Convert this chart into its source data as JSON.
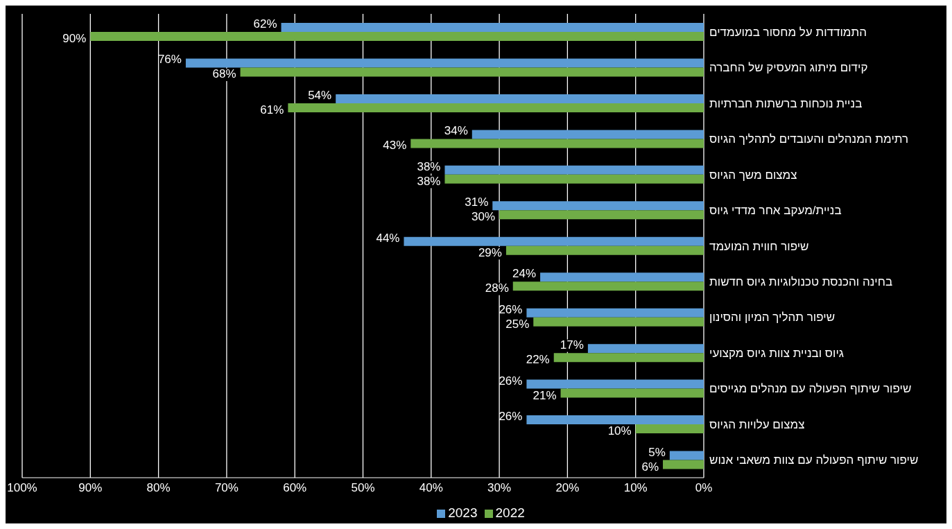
{
  "chart_data": {
    "type": "bar",
    "orientation": "horizontal",
    "categories": [
      "התמודדות על מחסור במועמדים",
      "קידום מיתוג המעסיק של החברה",
      "בניית נוכחות ברשתות חברתיות",
      "רתימת המנהלים והעובדים לתהליך הגיוס",
      "צמצום משך הגיוס",
      "בניית/מעקב אחר מדדי גיוס",
      "שיפור חווית המועמד",
      "בחינה והכנסת טכנולוגיות גיוס חדשות",
      "שיפור תהליך המיון והסינון",
      "גיוס ובניית צוות גיוס מקצועי",
      "שיפור שיתוף הפעולה עם מנהלים מגייסים",
      "צמצום עלויות הגיוס",
      "שיפור שיתוף הפעולה עם צוות משאבי אנוש"
    ],
    "series": [
      {
        "name": "2023",
        "color": "#5b9bd5",
        "values": [
          62,
          76,
          54,
          34,
          38,
          31,
          44,
          24,
          26,
          17,
          26,
          26,
          5
        ],
        "value_labels": [
          "62%",
          "76%",
          "54%",
          "34%",
          "38%",
          "31%",
          "44%",
          "24%",
          "26%",
          "17%",
          "26%",
          "26%",
          "5%"
        ]
      },
      {
        "name": "2022",
        "color": "#70ad47",
        "values": [
          90,
          68,
          61,
          43,
          38,
          30,
          29,
          28,
          25,
          22,
          21,
          10,
          6
        ],
        "value_labels": [
          "90%",
          "68%",
          "61%",
          "43%",
          "38%",
          "30%",
          "29%",
          "28%",
          "25%",
          "22%",
          "21%",
          "10%",
          "6%"
        ]
      }
    ],
    "xlim": [
      100,
      0
    ],
    "xticks": [
      {
        "value": 100,
        "label": "100%"
      },
      {
        "value": 90,
        "label": "90%"
      },
      {
        "value": 80,
        "label": "80%"
      },
      {
        "value": 70,
        "label": "70%"
      },
      {
        "value": 60,
        "label": "60%"
      },
      {
        "value": 50,
        "label": "50%"
      },
      {
        "value": 40,
        "label": "40%"
      },
      {
        "value": 30,
        "label": "30%"
      },
      {
        "value": 20,
        "label": "20%"
      },
      {
        "value": 10,
        "label": "10%"
      },
      {
        "value": 0,
        "label": "0%"
      }
    ],
    "grid": "x",
    "legend": "bottom"
  }
}
